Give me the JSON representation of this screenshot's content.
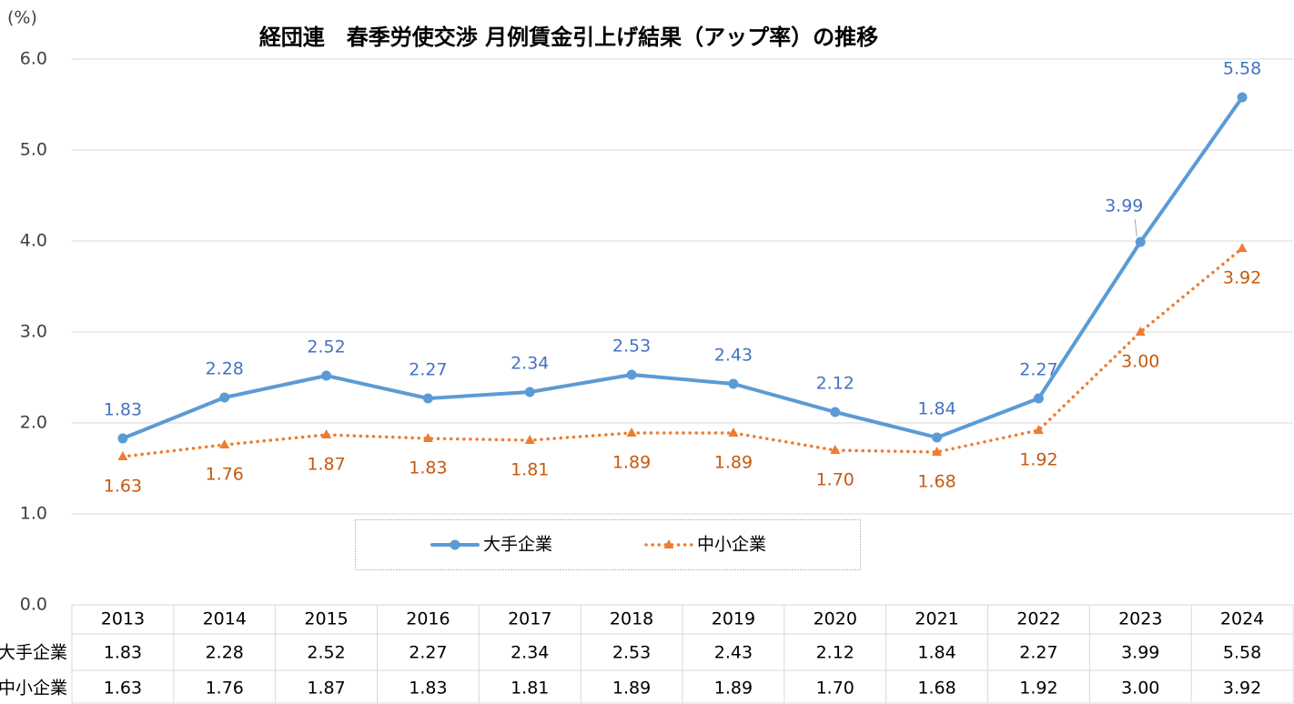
{
  "chart_data": {
    "type": "line",
    "title": "経団連　春季労使交渉 月例賃金引上げ結果（アップ率）の推移",
    "y_unit_label": "(%)",
    "categories": [
      "2013",
      "2014",
      "2015",
      "2016",
      "2017",
      "2018",
      "2019",
      "2020",
      "2021",
      "2022",
      "2023",
      "2024"
    ],
    "series": [
      {
        "name": "大手企業",
        "color": "#5b9bd5",
        "label_color": "#4472c4",
        "marker": "circle",
        "line_style": "solid",
        "values": [
          1.83,
          2.28,
          2.52,
          2.27,
          2.34,
          2.53,
          2.43,
          2.12,
          1.84,
          2.27,
          3.99,
          5.58
        ],
        "value_labels": [
          "1.83",
          "2.28",
          "2.52",
          "2.27",
          "2.34",
          "2.53",
          "2.43",
          "2.12",
          "1.84",
          "2.27",
          "3.99",
          "5.58"
        ]
      },
      {
        "name": "中小企業",
        "color": "#ed7d31",
        "label_color": "#c55a11",
        "marker": "triangle",
        "line_style": "dotted",
        "values": [
          1.63,
          1.76,
          1.87,
          1.83,
          1.81,
          1.89,
          1.89,
          1.7,
          1.68,
          1.92,
          3,
          3.92
        ],
        "value_labels": [
          "1.63",
          "1.76",
          "1.87",
          "1.83",
          "1.81",
          "1.89",
          "1.89",
          "1.70",
          "1.68",
          "1.92",
          "3.00",
          "3.92"
        ]
      }
    ],
    "ylim": [
      0,
      6
    ],
    "yticks": [
      {
        "value": 0,
        "label": "0.0"
      },
      {
        "value": 1,
        "label": "1.0"
      },
      {
        "value": 2,
        "label": "2.0"
      },
      {
        "value": 3,
        "label": "3.0"
      },
      {
        "value": 4,
        "label": "4.0"
      },
      {
        "value": 5,
        "label": "5.0"
      },
      {
        "value": 6,
        "label": "6.0"
      }
    ],
    "grid": true,
    "legend": "center",
    "data_table": true
  }
}
